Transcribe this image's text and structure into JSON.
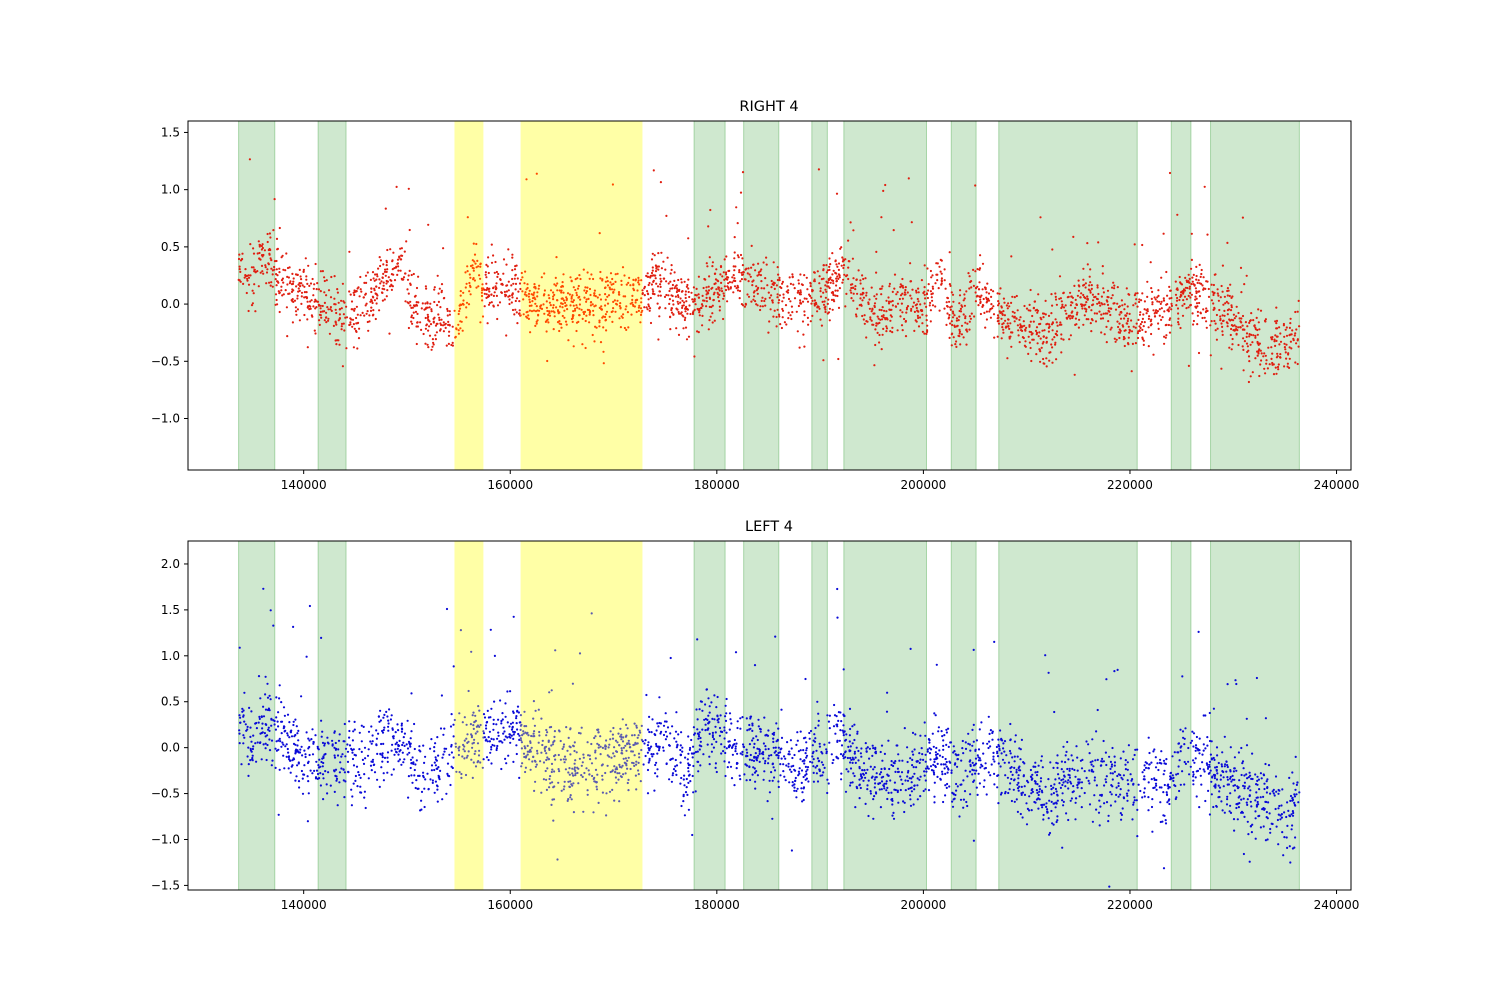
{
  "chart_data": [
    {
      "type": "scatter",
      "title": "RIGHT 4",
      "xlabel": "",
      "ylabel": "",
      "xlim": [
        128800,
        241400
      ],
      "ylim": [
        -1.45,
        1.6
      ],
      "x_ticks": [
        140000,
        160000,
        180000,
        200000,
        220000,
        240000
      ],
      "x_tick_labels": [
        "140000",
        "160000",
        "180000",
        "200000",
        "220000",
        "240000"
      ],
      "y_ticks": [
        -1.0,
        -0.5,
        0.0,
        0.5,
        1.0,
        1.5
      ],
      "y_tick_labels": [
        "−1.0",
        "−0.5",
        "0.0",
        "0.5",
        "1.0",
        "1.5"
      ],
      "point_color": "#e01e10",
      "point_color_in_yellow": "#ff4a00",
      "green_band_color": "#a8d5a8",
      "yellow_band_color": "#ffff80",
      "green_bands": [
        [
          133700,
          137200
        ],
        [
          141400,
          144100
        ],
        [
          177800,
          180800
        ],
        [
          182600,
          186000
        ],
        [
          189200,
          190700
        ],
        [
          192300,
          200300
        ],
        [
          202700,
          205100
        ],
        [
          207300,
          220700
        ],
        [
          224000,
          225900
        ],
        [
          227800,
          236400
        ]
      ],
      "yellow_bands": [
        [
          154600,
          157400
        ],
        [
          161000,
          172800
        ]
      ],
      "series": [
        {
          "x_range": [
            133700,
            236400
          ],
          "trend": [
            [
              133700,
              0.35
            ],
            [
              134500,
              0.15
            ],
            [
              136500,
              0.45
            ],
            [
              137500,
              0.25
            ],
            [
              139000,
              0.1
            ],
            [
              141000,
              0.08
            ],
            [
              143000,
              -0.05
            ],
            [
              144500,
              -0.1
            ],
            [
              146000,
              0.0
            ],
            [
              148500,
              0.3
            ],
            [
              149500,
              0.35
            ],
            [
              150500,
              0.0
            ],
            [
              152000,
              -0.15
            ],
            [
              153500,
              -0.1
            ],
            [
              154500,
              -0.3
            ],
            [
              156500,
              0.35
            ],
            [
              157500,
              0.1
            ],
            [
              159000,
              0.18
            ],
            [
              160500,
              0.15
            ],
            [
              162000,
              0.02
            ],
            [
              165000,
              0.0
            ],
            [
              168000,
              0.0
            ],
            [
              171000,
              0.05
            ],
            [
              173000,
              0.1
            ],
            [
              174000,
              0.25
            ],
            [
              176000,
              0.05
            ],
            [
              178000,
              -0.05
            ],
            [
              180000,
              0.15
            ],
            [
              182500,
              0.25
            ],
            [
              185000,
              0.1
            ],
            [
              188000,
              0.0
            ],
            [
              190000,
              0.1
            ],
            [
              192500,
              0.3
            ],
            [
              194000,
              0.0
            ],
            [
              196000,
              -0.1
            ],
            [
              198500,
              0.05
            ],
            [
              200500,
              0.0
            ],
            [
              201500,
              0.25
            ],
            [
              203000,
              -0.2
            ],
            [
              205500,
              0.1
            ],
            [
              208000,
              -0.15
            ],
            [
              210000,
              -0.2
            ],
            [
              212000,
              -0.3
            ],
            [
              214000,
              -0.05
            ],
            [
              216000,
              0.05
            ],
            [
              218000,
              -0.05
            ],
            [
              220000,
              -0.15
            ],
            [
              222000,
              -0.1
            ],
            [
              224000,
              0.0
            ],
            [
              226000,
              0.1
            ],
            [
              228000,
              0.05
            ],
            [
              230000,
              -0.15
            ],
            [
              232000,
              -0.3
            ],
            [
              234000,
              -0.4
            ],
            [
              236400,
              -0.3
            ]
          ],
          "spread": 0.13,
          "n_points": 3200
        }
      ]
    },
    {
      "type": "scatter",
      "title": "LEFT 4",
      "xlabel": "",
      "ylabel": "",
      "xlim": [
        128800,
        241400
      ],
      "ylim": [
        -1.55,
        2.25
      ],
      "x_ticks": [
        140000,
        160000,
        180000,
        200000,
        220000,
        240000
      ],
      "x_tick_labels": [
        "140000",
        "160000",
        "180000",
        "200000",
        "220000",
        "240000"
      ],
      "y_ticks": [
        -1.5,
        -1.0,
        -0.5,
        0.0,
        0.5,
        1.0,
        1.5,
        2.0
      ],
      "y_tick_labels": [
        "−1.5",
        "−1.0",
        "−0.5",
        "0.0",
        "0.5",
        "1.0",
        "1.5",
        "2.0"
      ],
      "point_color": "#0a0ad8",
      "point_color_in_yellow": "#5a5ab0",
      "green_band_color": "#a8d5a8",
      "yellow_band_color": "#ffff80",
      "green_bands": [
        [
          133700,
          137200
        ],
        [
          141400,
          144100
        ],
        [
          177800,
          180800
        ],
        [
          182600,
          186000
        ],
        [
          189200,
          190700
        ],
        [
          192300,
          200300
        ],
        [
          202700,
          205100
        ],
        [
          207300,
          220700
        ],
        [
          224000,
          225900
        ],
        [
          227800,
          236400
        ]
      ],
      "yellow_bands": [
        [
          154600,
          157400
        ],
        [
          161000,
          172800
        ]
      ],
      "series": [
        {
          "x_range": [
            133700,
            236400
          ],
          "trend": [
            [
              133700,
              0.25
            ],
            [
              135000,
              0.0
            ],
            [
              136500,
              0.3
            ],
            [
              138000,
              0.1
            ],
            [
              140000,
              0.0
            ],
            [
              142000,
              -0.15
            ],
            [
              144000,
              -0.2
            ],
            [
              146000,
              -0.1
            ],
            [
              148000,
              0.05
            ],
            [
              149500,
              0.1
            ],
            [
              150500,
              -0.2
            ],
            [
              152000,
              -0.3
            ],
            [
              154000,
              -0.1
            ],
            [
              156000,
              0.1
            ],
            [
              158000,
              0.1
            ],
            [
              160000,
              0.2
            ],
            [
              162000,
              0.05
            ],
            [
              165000,
              -0.25
            ],
            [
              168000,
              -0.2
            ],
            [
              171000,
              -0.1
            ],
            [
              173000,
              0.0
            ],
            [
              175000,
              0.1
            ],
            [
              177000,
              -0.3
            ],
            [
              179000,
              0.3
            ],
            [
              181000,
              0.0
            ],
            [
              183000,
              0.0
            ],
            [
              186000,
              -0.1
            ],
            [
              188000,
              -0.25
            ],
            [
              190000,
              0.0
            ],
            [
              192000,
              0.1
            ],
            [
              194000,
              -0.3
            ],
            [
              197000,
              -0.35
            ],
            [
              200000,
              -0.2
            ],
            [
              201500,
              -0.1
            ],
            [
              203000,
              -0.3
            ],
            [
              205500,
              -0.1
            ],
            [
              208000,
              -0.2
            ],
            [
              210000,
              -0.4
            ],
            [
              212000,
              -0.6
            ],
            [
              214000,
              -0.35
            ],
            [
              216000,
              -0.3
            ],
            [
              218000,
              -0.35
            ],
            [
              220000,
              -0.45
            ],
            [
              222000,
              -0.3
            ],
            [
              223500,
              -0.5
            ],
            [
              225000,
              -0.15
            ],
            [
              227000,
              -0.2
            ],
            [
              229000,
              -0.3
            ],
            [
              231000,
              -0.45
            ],
            [
              233000,
              -0.6
            ],
            [
              235000,
              -0.7
            ],
            [
              236400,
              -0.55
            ]
          ],
          "spread": 0.2,
          "n_points": 3000
        }
      ]
    }
  ]
}
